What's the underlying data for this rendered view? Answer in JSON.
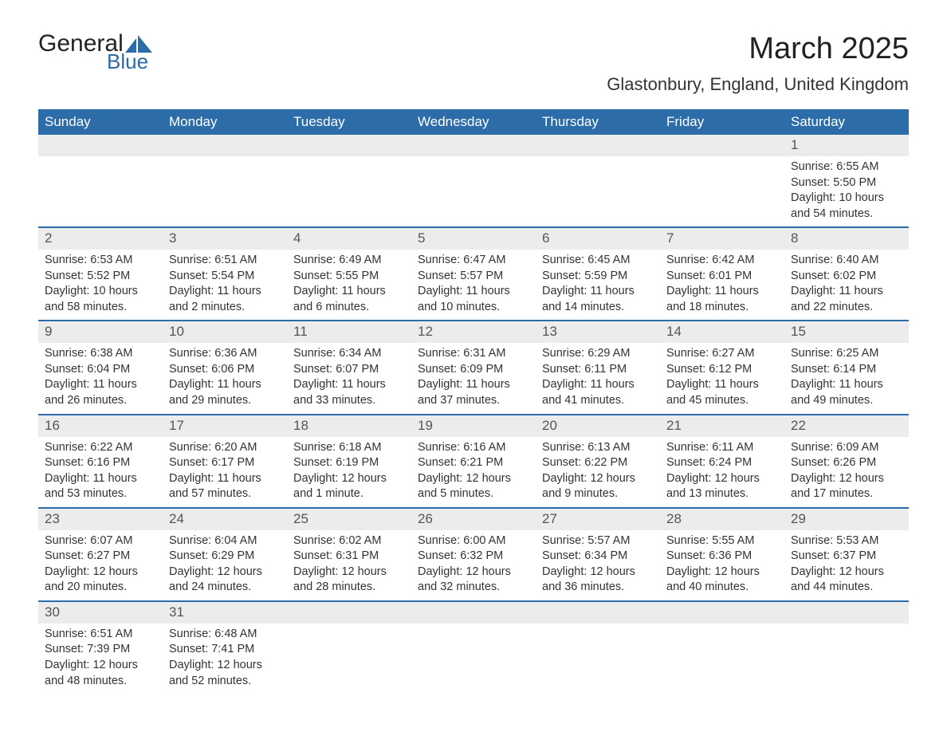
{
  "logo": {
    "text_top": "General",
    "text_bottom": "Blue",
    "accent_color": "#2c6ca8"
  },
  "title": "March 2025",
  "location": "Glastonbury, England, United Kingdom",
  "colors": {
    "header_bg": "#2c6ca8",
    "header_text": "#ffffff",
    "daynum_bg": "#ececec",
    "row_border": "#2c6ca8",
    "body_text": "#333333"
  },
  "typography": {
    "title_fontsize": 38,
    "location_fontsize": 22,
    "header_fontsize": 17,
    "daynum_fontsize": 17,
    "body_fontsize": 14.5,
    "font_family": "Arial"
  },
  "weekdays": [
    "Sunday",
    "Monday",
    "Tuesday",
    "Wednesday",
    "Thursday",
    "Friday",
    "Saturday"
  ],
  "calendar": {
    "type": "table",
    "columns": 7,
    "start_weekday_index": 6,
    "days": [
      {
        "n": 1,
        "sr": "6:55 AM",
        "ss": "5:50 PM",
        "dl": "10 hours and 54 minutes."
      },
      {
        "n": 2,
        "sr": "6:53 AM",
        "ss": "5:52 PM",
        "dl": "10 hours and 58 minutes."
      },
      {
        "n": 3,
        "sr": "6:51 AM",
        "ss": "5:54 PM",
        "dl": "11 hours and 2 minutes."
      },
      {
        "n": 4,
        "sr": "6:49 AM",
        "ss": "5:55 PM",
        "dl": "11 hours and 6 minutes."
      },
      {
        "n": 5,
        "sr": "6:47 AM",
        "ss": "5:57 PM",
        "dl": "11 hours and 10 minutes."
      },
      {
        "n": 6,
        "sr": "6:45 AM",
        "ss": "5:59 PM",
        "dl": "11 hours and 14 minutes."
      },
      {
        "n": 7,
        "sr": "6:42 AM",
        "ss": "6:01 PM",
        "dl": "11 hours and 18 minutes."
      },
      {
        "n": 8,
        "sr": "6:40 AM",
        "ss": "6:02 PM",
        "dl": "11 hours and 22 minutes."
      },
      {
        "n": 9,
        "sr": "6:38 AM",
        "ss": "6:04 PM",
        "dl": "11 hours and 26 minutes."
      },
      {
        "n": 10,
        "sr": "6:36 AM",
        "ss": "6:06 PM",
        "dl": "11 hours and 29 minutes."
      },
      {
        "n": 11,
        "sr": "6:34 AM",
        "ss": "6:07 PM",
        "dl": "11 hours and 33 minutes."
      },
      {
        "n": 12,
        "sr": "6:31 AM",
        "ss": "6:09 PM",
        "dl": "11 hours and 37 minutes."
      },
      {
        "n": 13,
        "sr": "6:29 AM",
        "ss": "6:11 PM",
        "dl": "11 hours and 41 minutes."
      },
      {
        "n": 14,
        "sr": "6:27 AM",
        "ss": "6:12 PM",
        "dl": "11 hours and 45 minutes."
      },
      {
        "n": 15,
        "sr": "6:25 AM",
        "ss": "6:14 PM",
        "dl": "11 hours and 49 minutes."
      },
      {
        "n": 16,
        "sr": "6:22 AM",
        "ss": "6:16 PM",
        "dl": "11 hours and 53 minutes."
      },
      {
        "n": 17,
        "sr": "6:20 AM",
        "ss": "6:17 PM",
        "dl": "11 hours and 57 minutes."
      },
      {
        "n": 18,
        "sr": "6:18 AM",
        "ss": "6:19 PM",
        "dl": "12 hours and 1 minute."
      },
      {
        "n": 19,
        "sr": "6:16 AM",
        "ss": "6:21 PM",
        "dl": "12 hours and 5 minutes."
      },
      {
        "n": 20,
        "sr": "6:13 AM",
        "ss": "6:22 PM",
        "dl": "12 hours and 9 minutes."
      },
      {
        "n": 21,
        "sr": "6:11 AM",
        "ss": "6:24 PM",
        "dl": "12 hours and 13 minutes."
      },
      {
        "n": 22,
        "sr": "6:09 AM",
        "ss": "6:26 PM",
        "dl": "12 hours and 17 minutes."
      },
      {
        "n": 23,
        "sr": "6:07 AM",
        "ss": "6:27 PM",
        "dl": "12 hours and 20 minutes."
      },
      {
        "n": 24,
        "sr": "6:04 AM",
        "ss": "6:29 PM",
        "dl": "12 hours and 24 minutes."
      },
      {
        "n": 25,
        "sr": "6:02 AM",
        "ss": "6:31 PM",
        "dl": "12 hours and 28 minutes."
      },
      {
        "n": 26,
        "sr": "6:00 AM",
        "ss": "6:32 PM",
        "dl": "12 hours and 32 minutes."
      },
      {
        "n": 27,
        "sr": "5:57 AM",
        "ss": "6:34 PM",
        "dl": "12 hours and 36 minutes."
      },
      {
        "n": 28,
        "sr": "5:55 AM",
        "ss": "6:36 PM",
        "dl": "12 hours and 40 minutes."
      },
      {
        "n": 29,
        "sr": "5:53 AM",
        "ss": "6:37 PM",
        "dl": "12 hours and 44 minutes."
      },
      {
        "n": 30,
        "sr": "6:51 AM",
        "ss": "7:39 PM",
        "dl": "12 hours and 48 minutes."
      },
      {
        "n": 31,
        "sr": "6:48 AM",
        "ss": "7:41 PM",
        "dl": "12 hours and 52 minutes."
      }
    ]
  },
  "labels": {
    "sunrise": "Sunrise:",
    "sunset": "Sunset:",
    "daylight": "Daylight:"
  }
}
